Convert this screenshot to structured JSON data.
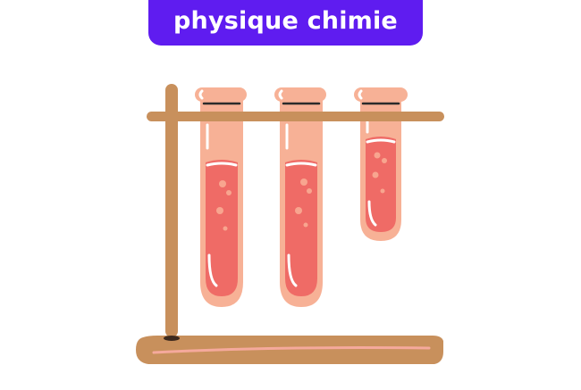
{
  "banner": {
    "title": "physique chimie"
  },
  "colors": {
    "banner_background": "#5f1cf0",
    "banner_text": "#ffffff",
    "stand_wood": "#c8905c",
    "stand_shadow": "#a87240",
    "tube_glass": "#f7b196",
    "liquid": "#ef6b66",
    "bubbles": "#f8a58f",
    "highlight": "#ffffff"
  },
  "illustration": {
    "icon": "test-tube-rack-icon",
    "tubes": [
      {
        "name": "test-tube-left",
        "fill_level": 0.55
      },
      {
        "name": "test-tube-middle",
        "fill_level": 0.55
      },
      {
        "name": "test-tube-right",
        "fill_level": 0.65
      }
    ]
  }
}
